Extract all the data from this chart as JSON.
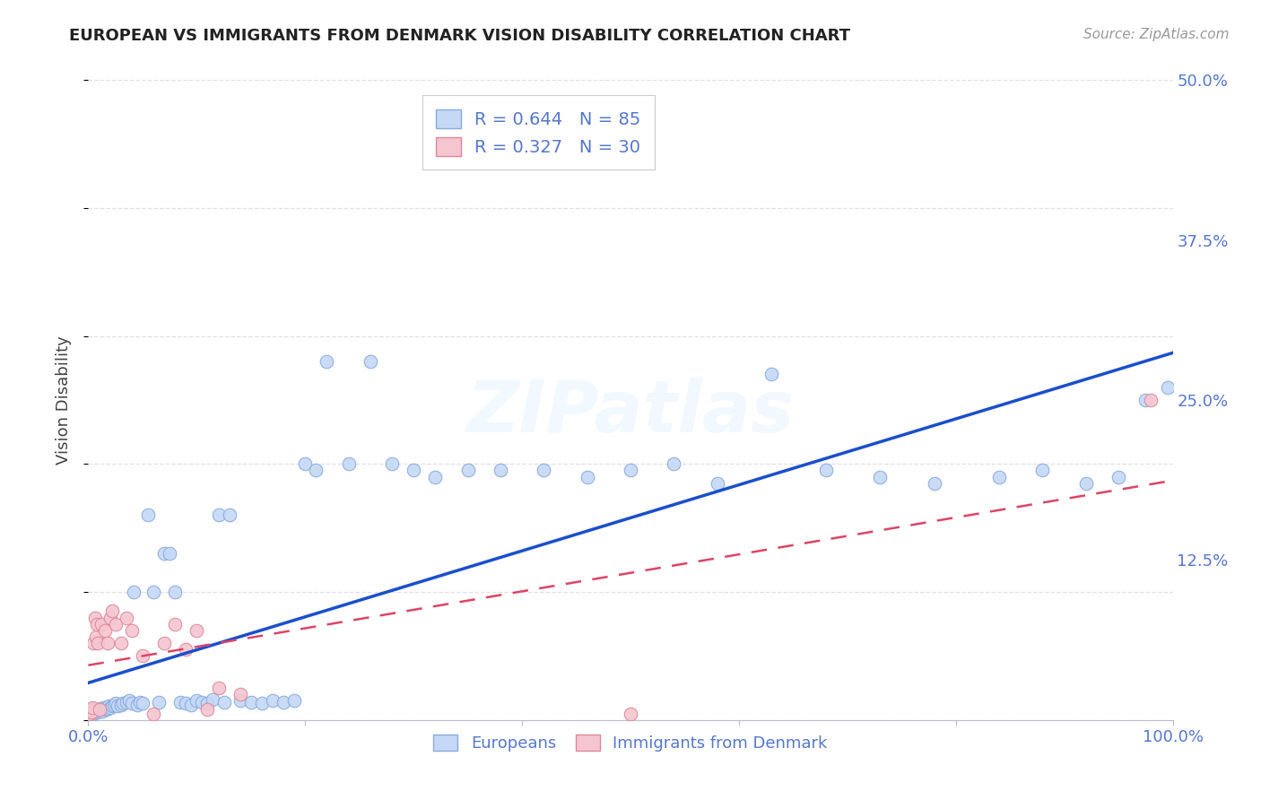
{
  "title": "EUROPEAN VS IMMIGRANTS FROM DENMARK VISION DISABILITY CORRELATION CHART",
  "source": "Source: ZipAtlas.com",
  "ylabel": "Vision Disability",
  "xlim": [
    0,
    1.0
  ],
  "ylim": [
    0,
    0.5
  ],
  "background_color": "#ffffff",
  "grid_color": "#e0e0e8",
  "tick_color": "#5577cc",
  "watermark": "ZIPatlas",
  "europeans_color": "#c5d8f5",
  "europeans_edge_color": "#88aadd",
  "immigrants_color": "#f5c5d0",
  "immigrants_edge_color": "#dd8899",
  "blue_line_color": "#1a4fcc",
  "pink_line_color": "#dd4466",
  "R_european": 0.644,
  "N_european": 85,
  "R_immigrant": 0.327,
  "N_immigrant": 30,
  "legend_label_european": "Europeans",
  "legend_label_immigrant": "Immigrants from Denmark",
  "europeans_x": [
    0.001,
    0.002,
    0.002,
    0.003,
    0.003,
    0.004,
    0.004,
    0.005,
    0.005,
    0.006,
    0.006,
    0.007,
    0.008,
    0.009,
    0.01,
    0.011,
    0.012,
    0.013,
    0.014,
    0.015,
    0.016,
    0.017,
    0.018,
    0.019,
    0.02,
    0.022,
    0.024,
    0.025,
    0.027,
    0.03,
    0.032,
    0.035,
    0.038,
    0.04,
    0.042,
    0.045,
    0.048,
    0.05,
    0.055,
    0.06,
    0.065,
    0.07,
    0.075,
    0.08,
    0.085,
    0.09,
    0.095,
    0.1,
    0.105,
    0.11,
    0.115,
    0.12,
    0.125,
    0.13,
    0.14,
    0.15,
    0.16,
    0.17,
    0.18,
    0.19,
    0.2,
    0.21,
    0.22,
    0.24,
    0.26,
    0.28,
    0.3,
    0.32,
    0.35,
    0.38,
    0.42,
    0.46,
    0.5,
    0.54,
    0.58,
    0.63,
    0.68,
    0.73,
    0.78,
    0.84,
    0.88,
    0.92,
    0.95,
    0.975,
    0.995
  ],
  "europeans_y": [
    0.005,
    0.004,
    0.007,
    0.005,
    0.008,
    0.006,
    0.009,
    0.005,
    0.007,
    0.006,
    0.008,
    0.007,
    0.006,
    0.008,
    0.007,
    0.009,
    0.008,
    0.007,
    0.01,
    0.009,
    0.008,
    0.01,
    0.009,
    0.011,
    0.01,
    0.011,
    0.012,
    0.013,
    0.011,
    0.012,
    0.013,
    0.014,
    0.015,
    0.013,
    0.1,
    0.012,
    0.014,
    0.013,
    0.16,
    0.1,
    0.014,
    0.13,
    0.13,
    0.1,
    0.014,
    0.013,
    0.012,
    0.015,
    0.014,
    0.013,
    0.016,
    0.16,
    0.014,
    0.16,
    0.015,
    0.014,
    0.013,
    0.015,
    0.014,
    0.015,
    0.2,
    0.195,
    0.28,
    0.2,
    0.28,
    0.2,
    0.195,
    0.19,
    0.195,
    0.195,
    0.195,
    0.19,
    0.195,
    0.2,
    0.185,
    0.27,
    0.195,
    0.19,
    0.185,
    0.19,
    0.195,
    0.185,
    0.19,
    0.25,
    0.26
  ],
  "immigrants_x": [
    0.001,
    0.002,
    0.003,
    0.004,
    0.005,
    0.006,
    0.007,
    0.008,
    0.009,
    0.01,
    0.012,
    0.015,
    0.018,
    0.02,
    0.022,
    0.025,
    0.03,
    0.035,
    0.04,
    0.05,
    0.06,
    0.07,
    0.08,
    0.09,
    0.1,
    0.11,
    0.12,
    0.14,
    0.5,
    0.98
  ],
  "immigrants_y": [
    0.005,
    0.008,
    0.006,
    0.01,
    0.06,
    0.08,
    0.065,
    0.075,
    0.06,
    0.008,
    0.075,
    0.07,
    0.06,
    0.08,
    0.085,
    0.075,
    0.06,
    0.08,
    0.07,
    0.05,
    0.005,
    0.06,
    0.075,
    0.055,
    0.07,
    0.008,
    0.025,
    0.02,
    0.005,
    0.25
  ]
}
